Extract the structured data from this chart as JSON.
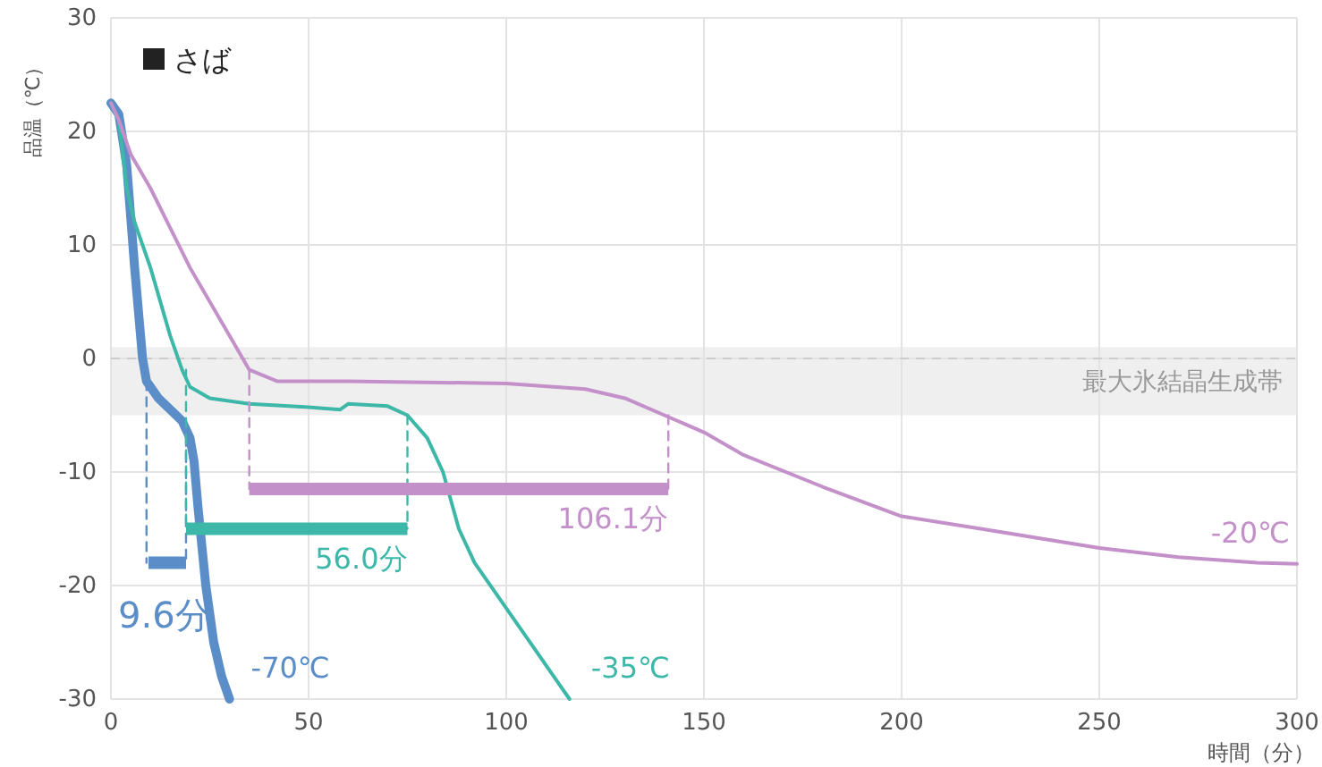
{
  "chart_data": {
    "type": "line",
    "title": "さば",
    "xlabel": "時間（分）",
    "ylabel": "品温（℃）",
    "xlim": [
      0,
      300
    ],
    "ylim": [
      -30,
      30
    ],
    "xticks": [
      0,
      50,
      100,
      150,
      200,
      250,
      300
    ],
    "yticks": [
      -30,
      -20,
      -10,
      0,
      10,
      20,
      30
    ],
    "grid": true,
    "marker": "none",
    "bands": [
      {
        "axis": "y",
        "from": -5,
        "to": 1,
        "label": "最大氷結晶生成帯",
        "color": "#efefef"
      }
    ],
    "ref_lines": [
      {
        "axis": "y",
        "value": 0,
        "color": "#cccccc",
        "line_style": "dashed"
      }
    ],
    "series": [
      {
        "name": "-70℃",
        "color": "#5b8ec9",
        "x": [
          0,
          2,
          4,
          6,
          8,
          9,
          12,
          15,
          18,
          20,
          21,
          22,
          24,
          26,
          28,
          30
        ],
        "values": [
          22.5,
          21.5,
          17,
          8,
          0,
          -2,
          -3.5,
          -4.5,
          -5.5,
          -7,
          -9,
          -13,
          -20,
          -25,
          -28,
          -30
        ]
      },
      {
        "name": "-35℃",
        "color": "#3db8a8",
        "x": [
          0,
          2,
          4,
          6,
          10,
          15,
          18,
          20,
          25,
          35,
          50,
          58,
          60,
          70,
          75,
          80,
          84,
          88,
          92,
          100,
          108,
          116
        ],
        "values": [
          22.5,
          21,
          15,
          12,
          8,
          2,
          -1,
          -2.5,
          -3.5,
          -4,
          -4.3,
          -4.5,
          -4,
          -4.2,
          -5,
          -7,
          -10,
          -15,
          -18,
          -22,
          -26,
          -30
        ]
      },
      {
        "name": "-20℃",
        "color": "#c390c9",
        "x": [
          0,
          2,
          5,
          10,
          20,
          30,
          35,
          42,
          60,
          100,
          120,
          130,
          140,
          150,
          160,
          180,
          200,
          220,
          250,
          270,
          290,
          300
        ],
        "values": [
          22.5,
          21,
          18,
          15,
          8,
          2,
          -1,
          -2,
          -2,
          -2.2,
          -2.7,
          -3.5,
          -5,
          -6.5,
          -8.5,
          -11.3,
          -13.9,
          -15,
          -16.7,
          -17.5,
          -18,
          -18.1
        ]
      },
      {
        "color": "#5b8ec9",
        "line_style": "dashed",
        "x": [
          9,
          9
        ],
        "values": [
          -2,
          -18
        ]
      },
      {
        "color": "#5b8ec9",
        "line_style": "dashed",
        "x": [
          19,
          19
        ],
        "values": [
          -5.5,
          -18
        ]
      },
      {
        "color": "#3db8a8",
        "line_style": "dashed",
        "x": [
          19,
          19
        ],
        "values": [
          -1,
          -15
        ]
      },
      {
        "color": "#3db8a8",
        "line_style": "dashed",
        "x": [
          75,
          75
        ],
        "values": [
          -5,
          -15
        ]
      },
      {
        "color": "#c390c9",
        "line_style": "dashed",
        "x": [
          35,
          35
        ],
        "values": [
          -1,
          -11.5
        ]
      },
      {
        "color": "#c390c9",
        "line_style": "dashed",
        "x": [
          141,
          141
        ],
        "values": [
          -5,
          -11.5
        ]
      },
      {
        "name": "9.6分",
        "color": "#5b8ec9",
        "x": [
          9.5,
          19
        ],
        "values": [
          -18,
          -18
        ]
      },
      {
        "name": "56.0分",
        "color": "#3db8a8",
        "x": [
          19,
          75
        ],
        "values": [
          -15,
          -15
        ]
      },
      {
        "name": "106.1分",
        "color": "#c390c9",
        "x": [
          35,
          141
        ],
        "values": [
          -11.5,
          -11.5
        ]
      }
    ]
  }
}
